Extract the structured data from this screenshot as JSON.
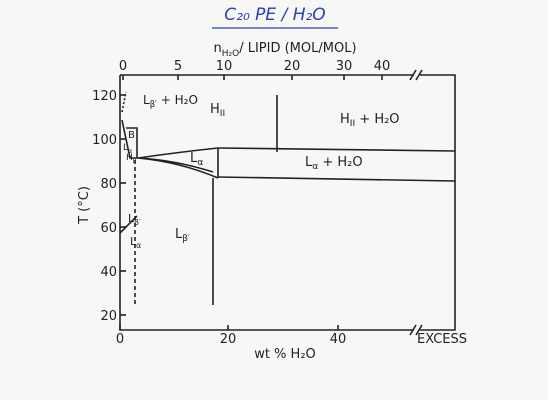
{
  "title": "C₂₀ PE / H₂O",
  "top_axis": {
    "label": "n",
    "label_sub": "H₂O",
    "label_rest": "/ LIPID (MOL/MOL)",
    "ticks": [
      "0",
      "5",
      "10",
      "20",
      "30",
      "40"
    ]
  },
  "bottom_axis": {
    "label": "wt % H₂O",
    "ticks": [
      "0",
      "20",
      "40"
    ],
    "excess": "EXCESS"
  },
  "left_axis": {
    "label": "T (°C)",
    "ticks": [
      "120",
      "100",
      "80",
      "60",
      "40",
      "20"
    ]
  },
  "regions": [
    {
      "main": "H",
      "sub": "II",
      "rest": ""
    },
    {
      "main": "H",
      "sub": "II",
      "rest": " + H₂O"
    },
    {
      "main": "L",
      "sub": "α",
      "rest": ""
    },
    {
      "main": "L",
      "sub": "α",
      "rest": " + H₂O"
    },
    {
      "main": "L",
      "sub": "β′",
      "rest": ""
    },
    {
      "main": "L",
      "sub": "β′",
      "rest": " + H₂O"
    },
    {
      "main": "B",
      "sub": "",
      "rest": ""
    },
    {
      "main": "L",
      "sub": "α",
      "rest": ""
    },
    {
      "main": "L",
      "sub": "β′",
      "rest": ""
    },
    {
      "main": "L",
      "sub": "α",
      "rest": ""
    },
    {
      "main": "H",
      "sub": "II",
      "rest": ""
    }
  ]
}
